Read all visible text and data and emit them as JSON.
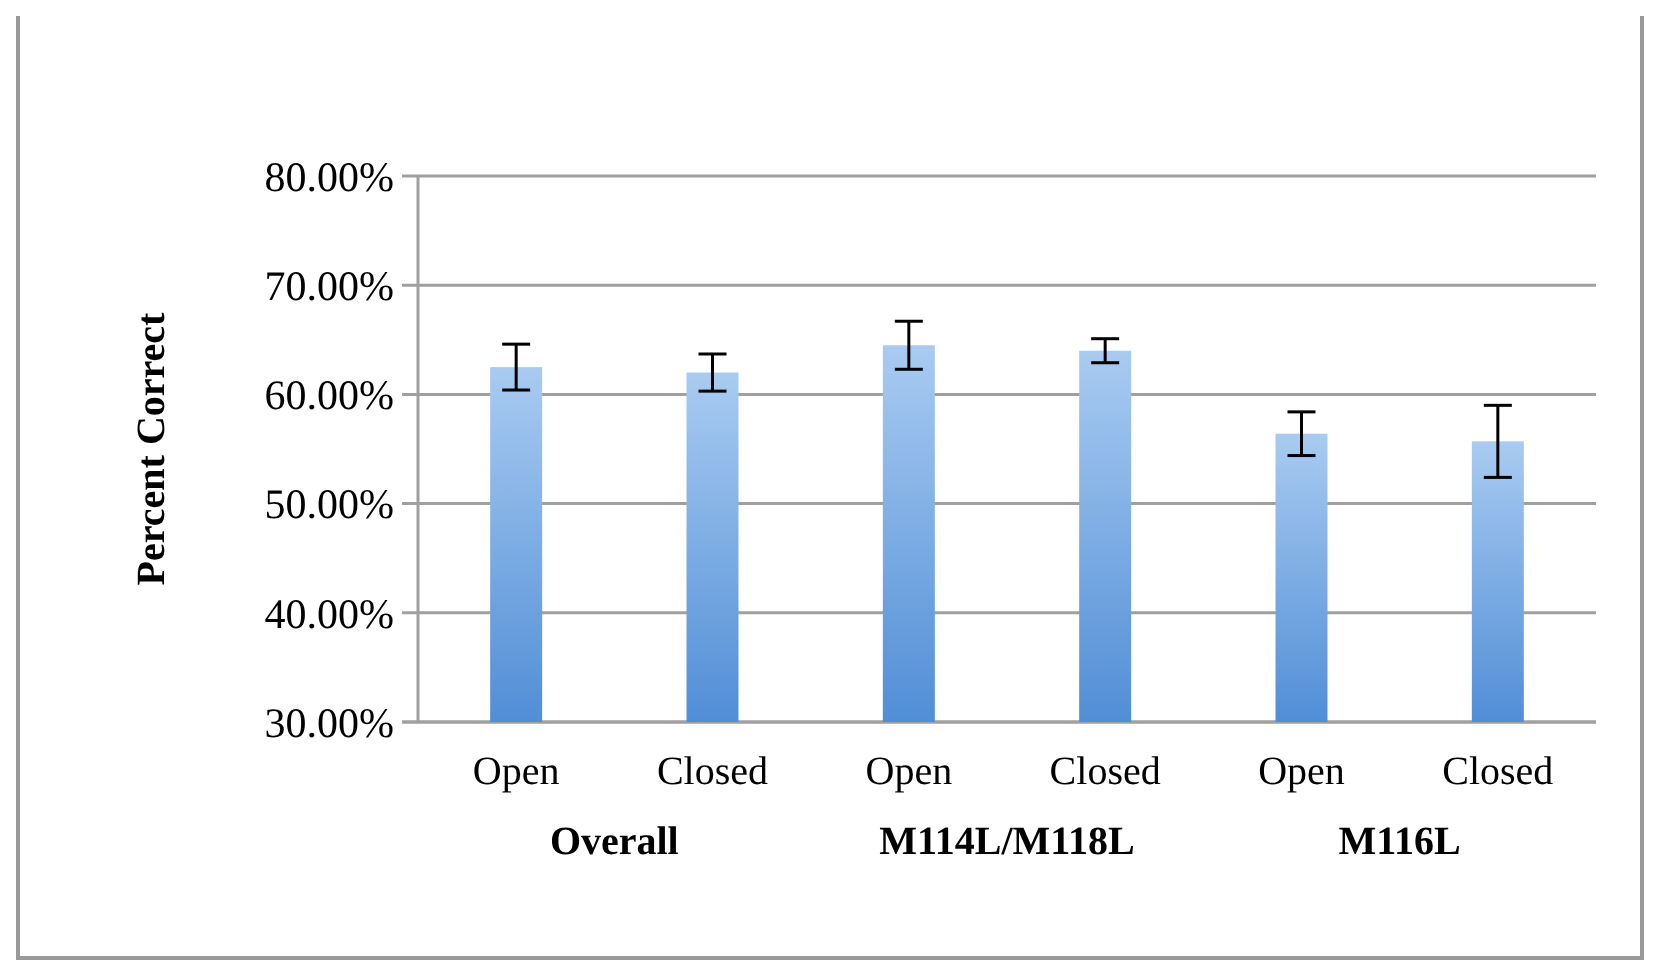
{
  "chart_data": {
    "type": "bar",
    "ylabel": "Percent Correct",
    "categories": [
      "Open",
      "Closed",
      "Open",
      "Closed",
      "Open",
      "Closed"
    ],
    "values": [
      62.5,
      62.0,
      64.5,
      64.0,
      56.4,
      55.7
    ],
    "errors": [
      2.1,
      1.7,
      2.2,
      1.1,
      2.0,
      3.3
    ],
    "color": "#6fa8e8",
    "ylim": [
      30,
      80
    ],
    "yticks": [
      {
        "value": 30,
        "label": "30.00%"
      },
      {
        "value": 40,
        "label": "40.00%"
      },
      {
        "value": 50,
        "label": "50.00%"
      },
      {
        "value": 60,
        "label": "60.00%"
      },
      {
        "value": 70,
        "label": "70.00%"
      },
      {
        "value": 80,
        "label": "80.00%"
      }
    ],
    "grid": "y",
    "annotations": [
      "Overall",
      "M114L/M118L",
      "M116L"
    ]
  }
}
